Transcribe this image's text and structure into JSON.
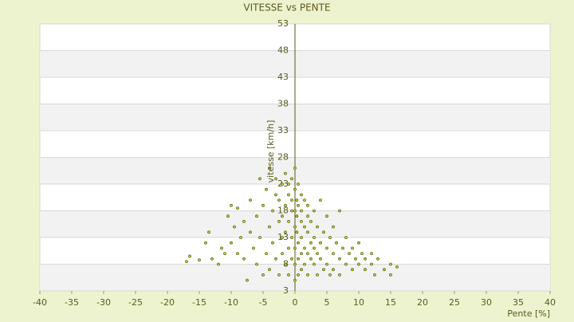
{
  "chart_data": {
    "type": "scatter",
    "title": "VITESSE vs PENTE",
    "xlabel": "Pente [%]",
    "ylabel": "vitesse [km/h]",
    "color": "#5d6b00",
    "x": [
      -17,
      -16.5,
      -15,
      -14,
      -13.5,
      -13,
      -12,
      -11.5,
      -11,
      -10.5,
      -10,
      -10,
      -9.5,
      -9,
      -9,
      -8.5,
      -8,
      -8,
      -7.5,
      -7,
      -7,
      -6.5,
      -6,
      -6,
      -5.5,
      -5.5,
      -5,
      -5,
      -4.5,
      -4.5,
      -4,
      -4,
      -4,
      -3.5,
      -3.5,
      -3,
      -3,
      -3,
      -2.5,
      -2.5,
      -2.5,
      -2,
      -2,
      -2,
      -2,
      -1.5,
      -1.5,
      -1.5,
      -1.5,
      -1,
      -1,
      -1,
      -1,
      -1,
      -0.5,
      -0.5,
      -0.5,
      -0.5,
      -0.5,
      0,
      0,
      0,
      0,
      0,
      0,
      0,
      0.3,
      0.3,
      0.3,
      0.5,
      0.5,
      0.5,
      0.5,
      0.5,
      1,
      1,
      1,
      1,
      1,
      1,
      1.5,
      1.5,
      1.5,
      1.5,
      2,
      2,
      2,
      2,
      2,
      2.5,
      2.5,
      2.5,
      3,
      3,
      3,
      3,
      3.5,
      3.5,
      3.5,
      4,
      4,
      4,
      4.5,
      4.5,
      5,
      5,
      5,
      5.5,
      5.5,
      6,
      6,
      6,
      6.5,
      7,
      7,
      7,
      7.5,
      8,
      8,
      8.5,
      9,
      9,
      9.5,
      10,
      10,
      10.5,
      11,
      11,
      12,
      12,
      12.5,
      13,
      14,
      15,
      15,
      16
    ],
    "values": [
      8.5,
      9.5,
      8.8,
      12,
      14,
      9,
      8,
      11,
      10,
      17,
      19,
      12,
      15,
      18.5,
      10,
      13,
      16,
      9,
      5,
      14,
      20,
      11,
      17,
      8,
      24,
      13,
      19,
      6,
      22,
      10,
      15,
      26,
      7,
      18,
      12,
      21,
      9,
      24,
      16,
      6,
      20,
      13,
      23,
      10,
      17,
      19,
      8,
      25,
      14,
      21,
      11,
      16,
      6,
      23,
      18,
      13,
      9,
      20,
      24,
      5,
      15,
      22,
      26,
      11,
      18,
      8,
      20,
      14,
      17,
      12,
      23,
      9,
      19,
      6,
      16,
      21,
      13,
      10,
      18,
      7,
      15,
      20,
      11,
      8,
      14,
      17,
      10,
      6,
      19,
      12,
      16,
      9,
      13,
      18,
      8,
      11,
      15,
      10,
      6,
      12,
      20,
      9,
      14,
      7,
      11,
      17,
      8,
      13,
      6,
      10,
      15,
      7,
      12,
      9,
      18,
      6,
      11,
      8,
      13,
      10,
      7,
      11,
      9,
      8,
      12,
      10,
      7,
      9,
      8,
      10,
      6,
      9,
      7,
      8,
      6,
      7.5
    ],
    "xlim": [
      -40,
      40
    ],
    "xticks": [
      -40,
      -35,
      -30,
      -25,
      -20,
      -15,
      -10,
      -5,
      0,
      5,
      10,
      15,
      20,
      25,
      30,
      35,
      40
    ],
    "ylim": [
      3,
      53
    ],
    "yticks": [
      3,
      8,
      13,
      18,
      23,
      28,
      33,
      38,
      43,
      48,
      53
    ],
    "grid": true
  }
}
